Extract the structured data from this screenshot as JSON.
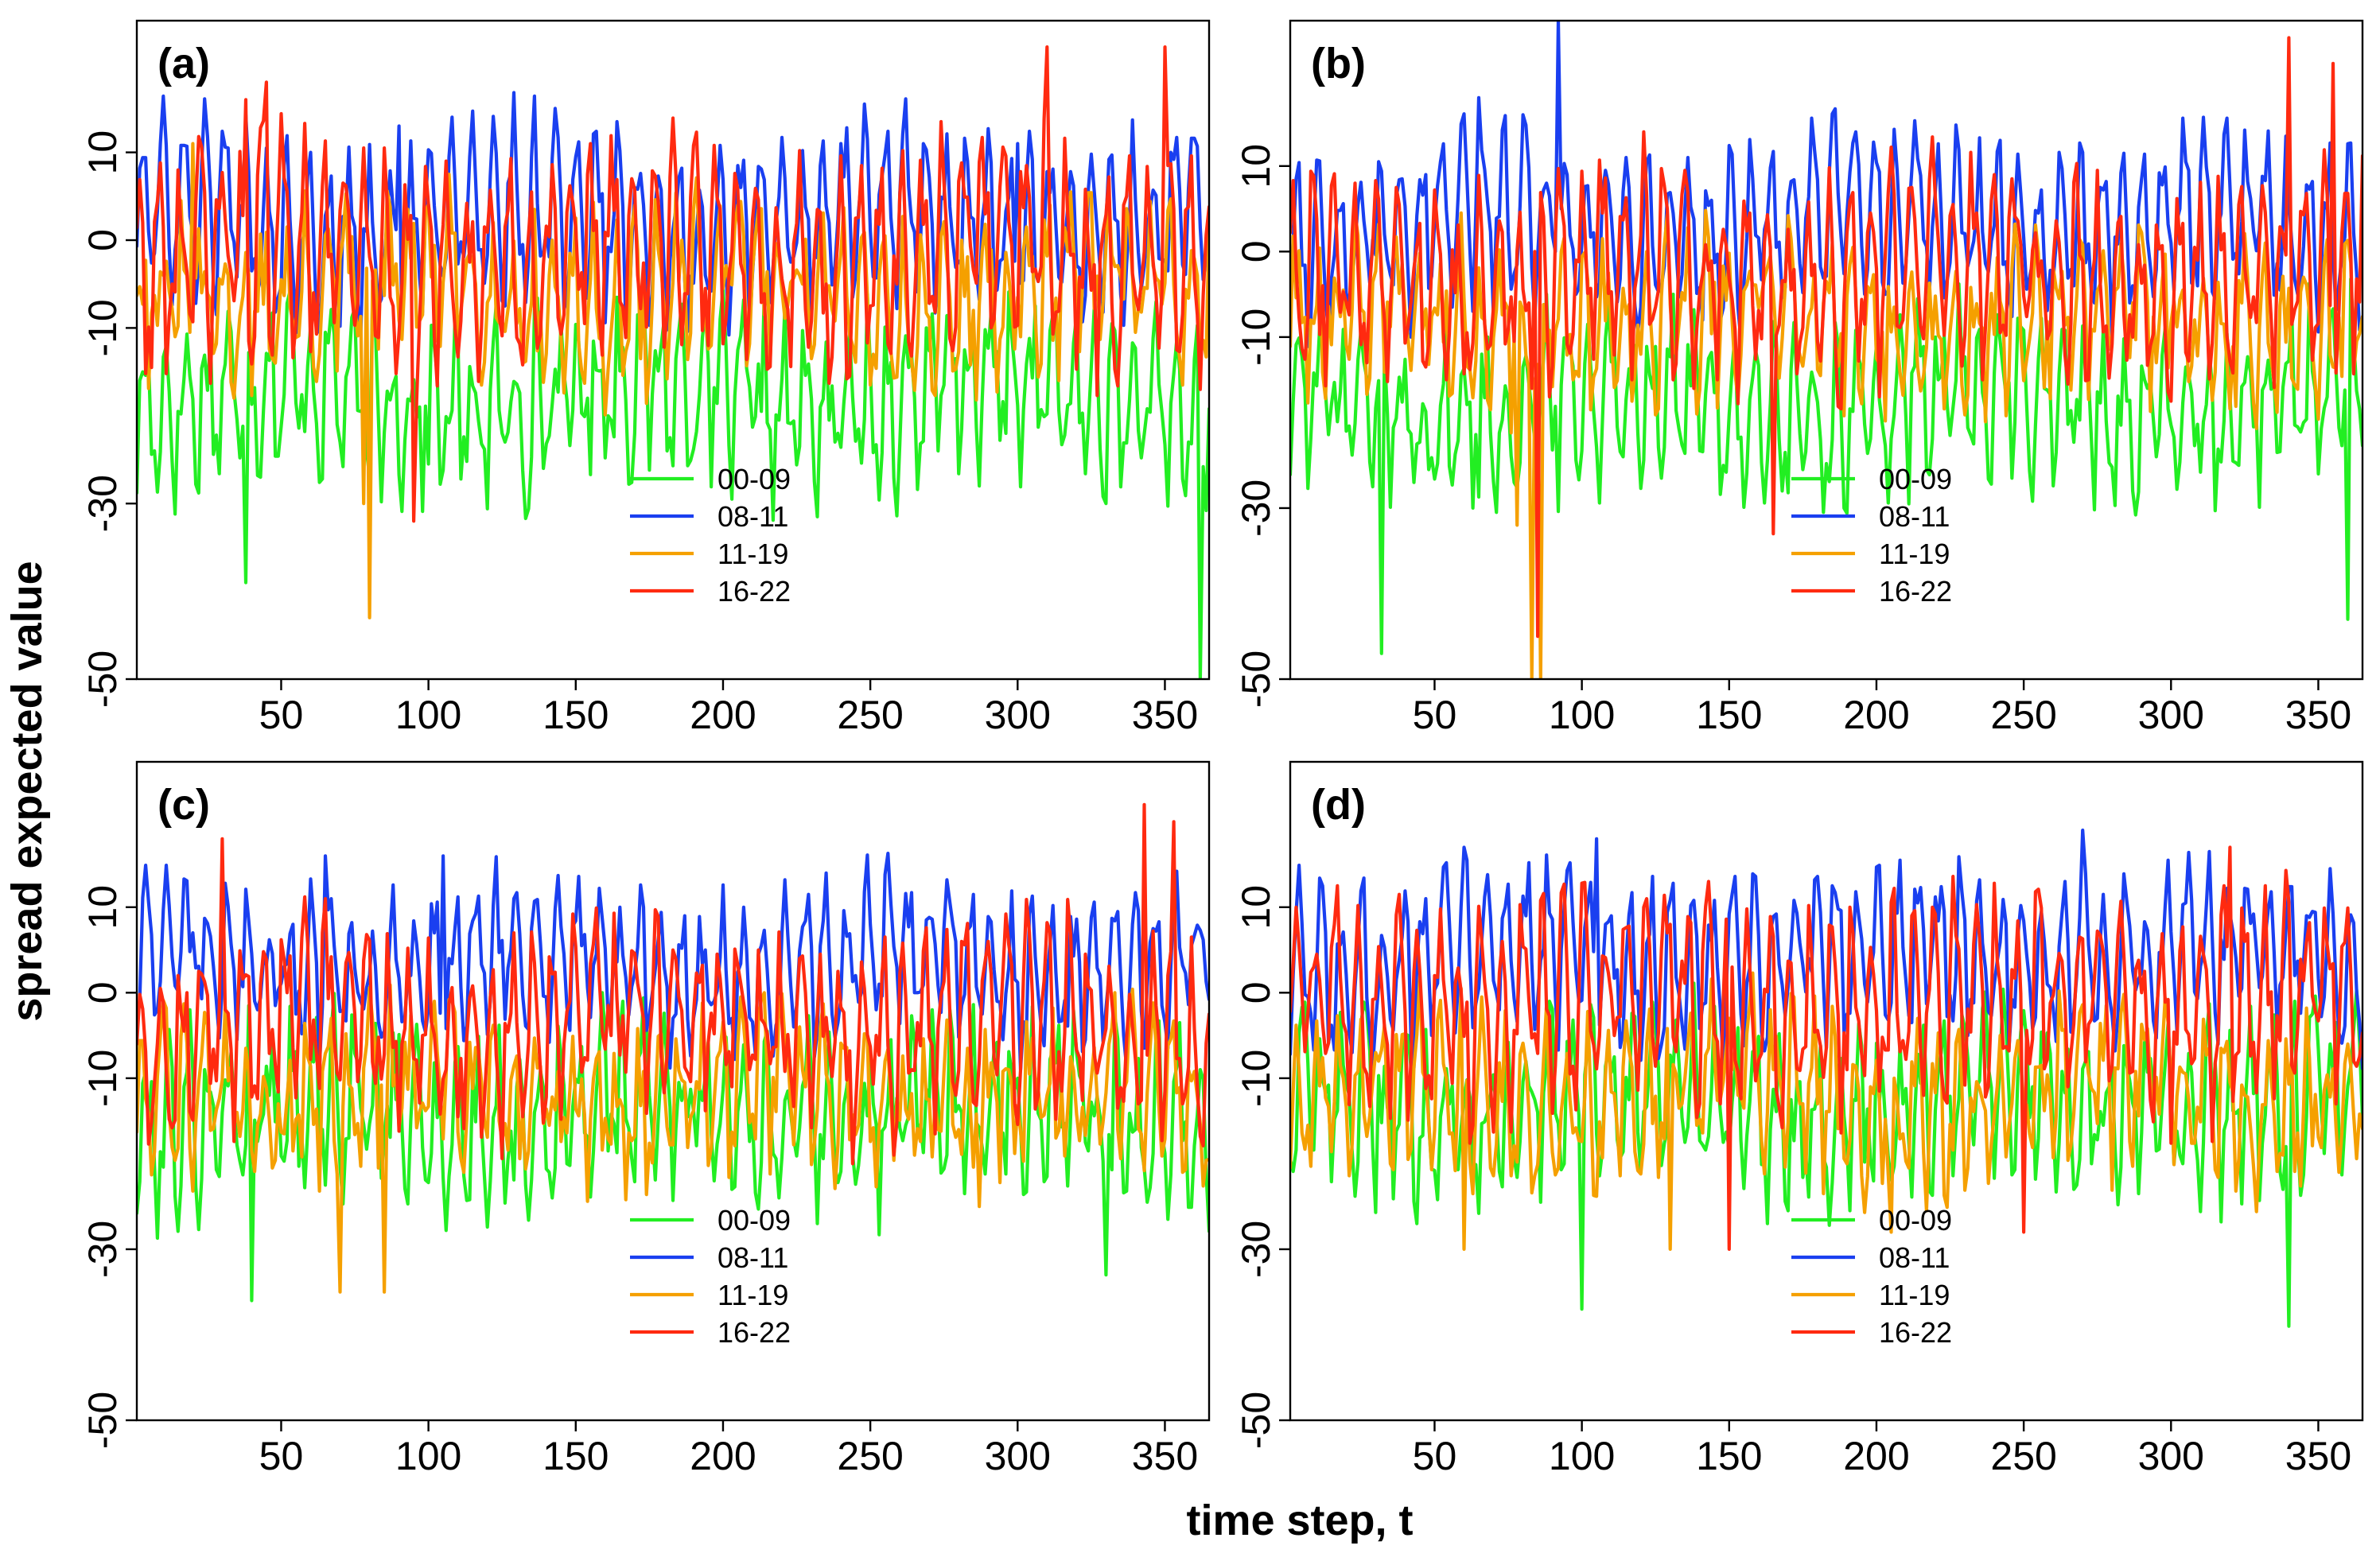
{
  "figure": {
    "ylabel": "spread expected value",
    "xlabel": "time step, t"
  },
  "chart_data": [
    {
      "type": "line",
      "panel_label": "(a)",
      "xlim": [
        1,
        365
      ],
      "ylim": [
        -50,
        25
      ],
      "xticks": [
        50,
        100,
        150,
        200,
        250,
        300,
        350
      ],
      "yticks": [
        -50,
        -30,
        -10,
        0,
        10
      ],
      "grid": false,
      "legend_position": "lower-center",
      "series": [
        {
          "name": "00-09",
          "color": "#22ee22",
          "base": -18,
          "amp": 7,
          "noise": 4,
          "spikes": [
            [
              38,
              -39
            ],
            [
              80,
              -27
            ],
            [
              362,
              -50
            ]
          ],
          "values": []
        },
        {
          "name": "08-11",
          "color": "#1a3ff0",
          "base": 2,
          "amp": 8,
          "noise": 3,
          "spikes": [
            [
              90,
              13
            ],
            [
              240,
              11
            ],
            [
              300,
              11
            ]
          ],
          "values": []
        },
        {
          "name": "11-19",
          "color": "#f5a000",
          "base": -6,
          "amp": 6,
          "noise": 4,
          "spikes": [
            [
              80,
              -43
            ],
            [
              78,
              -30
            ],
            [
              20,
              11
            ]
          ],
          "values": []
        },
        {
          "name": "16-22",
          "color": "#ff2a10",
          "base": -2,
          "amp": 9,
          "noise": 4,
          "spikes": [
            [
              38,
              16
            ],
            [
              45,
              18
            ],
            [
              95,
              -32
            ],
            [
              310,
              22
            ],
            [
              350,
              22
            ]
          ],
          "values": []
        }
      ]
    },
    {
      "type": "line",
      "panel_label": "(b)",
      "xlim": [
        1,
        365
      ],
      "ylim": [
        -50,
        27
      ],
      "xticks": [
        50,
        100,
        150,
        200,
        250,
        300,
        350
      ],
      "yticks": [
        -50,
        -30,
        -10,
        0,
        10
      ],
      "grid": false,
      "legend_position": "lower-right",
      "series": [
        {
          "name": "00-09",
          "color": "#22ee22",
          "base": -18,
          "amp": 7,
          "noise": 4,
          "spikes": [
            [
              32,
              -47
            ],
            [
              360,
              -43
            ]
          ],
          "values": []
        },
        {
          "name": "08-11",
          "color": "#1a3ff0",
          "base": 3,
          "amp": 8,
          "noise": 3,
          "spikes": [
            [
              65,
              18
            ],
            [
              80,
              16
            ],
            [
              92,
              27
            ]
          ],
          "values": []
        },
        {
          "name": "11-19",
          "color": "#f5a000",
          "base": -8,
          "amp": 6,
          "noise": 4,
          "spikes": [
            [
              83,
              -50
            ],
            [
              86,
              -50
            ],
            [
              78,
              -32
            ]
          ],
          "values": []
        },
        {
          "name": "16-22",
          "color": "#ff2a10",
          "base": -3,
          "amp": 9,
          "noise": 4,
          "spikes": [
            [
              85,
              -45
            ],
            [
              165,
              -33
            ],
            [
              340,
              25
            ],
            [
              355,
              22
            ]
          ],
          "values": []
        }
      ]
    },
    {
      "type": "line",
      "panel_label": "(c)",
      "xlim": [
        1,
        365
      ],
      "ylim": [
        -50,
        27
      ],
      "xticks": [
        50,
        100,
        150,
        200,
        250,
        300,
        350
      ],
      "yticks": [
        -50,
        -30,
        -10,
        0,
        10
      ],
      "grid": false,
      "legend_position": "lower-center",
      "series": [
        {
          "name": "00-09",
          "color": "#22ee22",
          "base": -14,
          "amp": 7,
          "noise": 4,
          "spikes": [
            [
              40,
              -36
            ],
            [
              330,
              -33
            ]
          ],
          "values": []
        },
        {
          "name": "08-11",
          "color": "#1a3ff0",
          "base": 3,
          "amp": 7,
          "noise": 3,
          "spikes": [
            [
              65,
              16
            ],
            [
              105,
              16
            ]
          ],
          "values": []
        },
        {
          "name": "11-19",
          "color": "#f5a000",
          "base": -12,
          "amp": 6,
          "noise": 4,
          "spikes": [
            [
              70,
              -35
            ],
            [
              85,
              -35
            ]
          ],
          "values": []
        },
        {
          "name": "16-22",
          "color": "#ff2a10",
          "base": -4,
          "amp": 8,
          "noise": 4,
          "spikes": [
            [
              30,
              18
            ],
            [
              343,
              22
            ],
            [
              353,
              20
            ]
          ],
          "values": []
        }
      ]
    },
    {
      "type": "line",
      "panel_label": "(d)",
      "xlim": [
        1,
        365
      ],
      "ylim": [
        -50,
        27
      ],
      "xticks": [
        50,
        100,
        150,
        200,
        250,
        300,
        350
      ],
      "yticks": [
        -50,
        -30,
        -10,
        0,
        10
      ],
      "grid": false,
      "legend_position": "lower-right",
      "series": [
        {
          "name": "00-09",
          "color": "#22ee22",
          "base": -13,
          "amp": 7,
          "noise": 4,
          "spikes": [
            [
              100,
              -37
            ],
            [
              340,
              -39
            ]
          ],
          "values": []
        },
        {
          "name": "08-11",
          "color": "#1a3ff0",
          "base": 4,
          "amp": 8,
          "noise": 3,
          "spikes": [
            [
              105,
              18
            ],
            [
              270,
              19
            ]
          ],
          "values": []
        },
        {
          "name": "11-19",
          "color": "#f5a000",
          "base": -12,
          "amp": 7,
          "noise": 4,
          "spikes": [
            [
              60,
              -30
            ],
            [
              130,
              -30
            ],
            [
              205,
              -28
            ]
          ],
          "values": []
        },
        {
          "name": "16-22",
          "color": "#ff2a10",
          "base": -1,
          "amp": 9,
          "noise": 4,
          "spikes": [
            [
              150,
              -30
            ],
            [
              250,
              -28
            ],
            [
              320,
              17
            ]
          ],
          "values": []
        }
      ]
    }
  ]
}
